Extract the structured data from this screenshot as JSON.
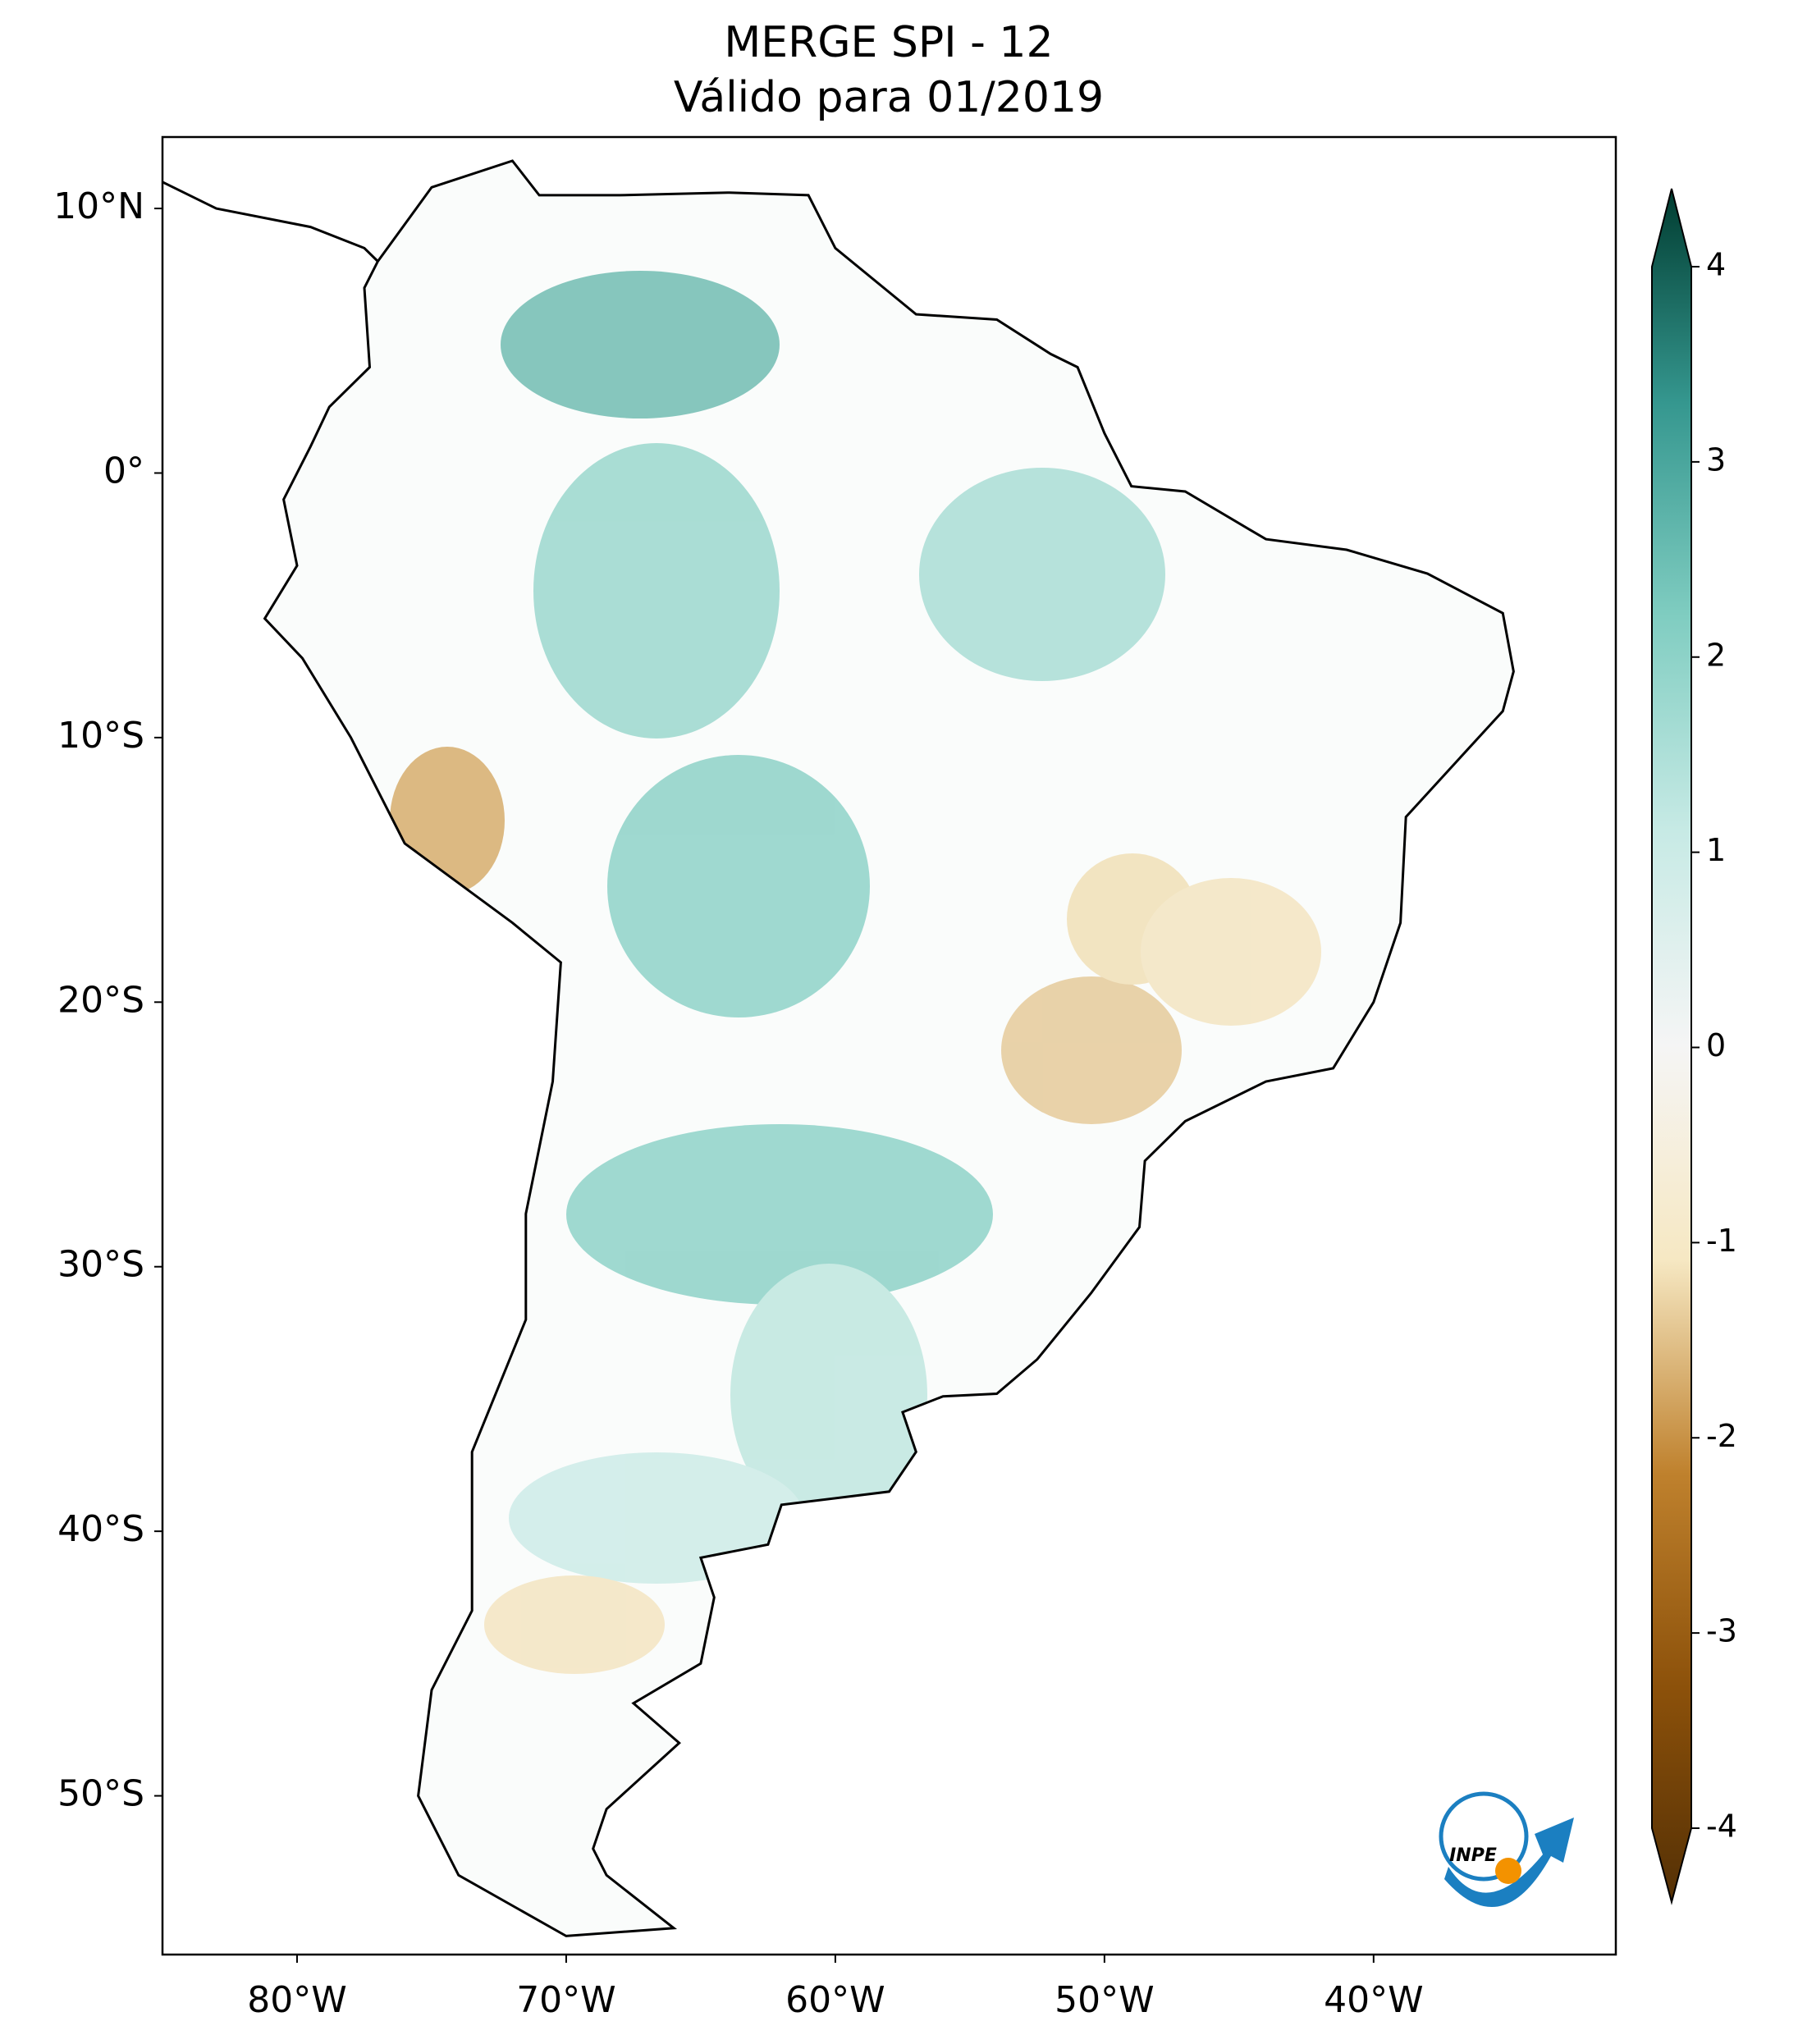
{
  "map": {
    "title": [
      "MERGE   SPI - 12",
      "Válido para 01/2019"
    ],
    "xlim": [
      -85,
      -31
    ],
    "ylim": [
      -56,
      12.7
    ],
    "lon_ticks": [
      {
        "value": -80,
        "label": "80°W"
      },
      {
        "value": -70,
        "label": "70°W"
      },
      {
        "value": -60,
        "label": "60°W"
      },
      {
        "value": -50,
        "label": "50°W"
      },
      {
        "value": -40,
        "label": "40°W"
      }
    ],
    "lat_ticks": [
      {
        "value": 10,
        "label": "10°N"
      },
      {
        "value": 0,
        "label": "0°"
      },
      {
        "value": -10,
        "label": "10°S"
      },
      {
        "value": -20,
        "label": "20°S"
      },
      {
        "value": -30,
        "label": "30°S"
      },
      {
        "value": -40,
        "label": "40°S"
      },
      {
        "value": -50,
        "label": "50°S"
      }
    ],
    "colorbar": {
      "range": [
        -4,
        4
      ],
      "ticks": [
        -4,
        -3,
        -2,
        -1,
        0,
        1,
        2,
        3,
        4
      ]
    },
    "logo": "INPE"
  }
}
